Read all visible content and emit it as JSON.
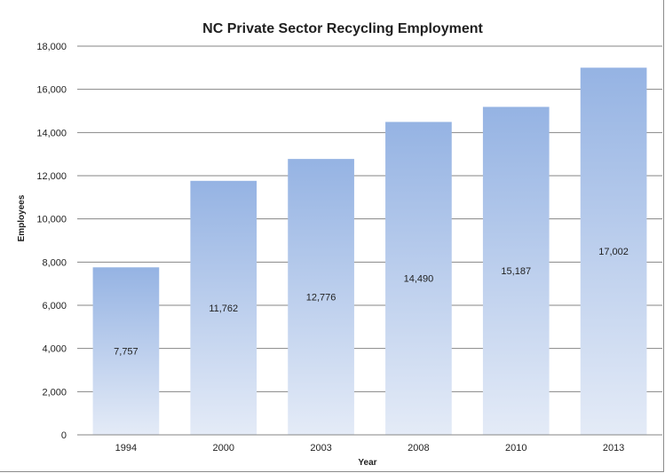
{
  "chart_data": {
    "type": "bar",
    "title": "NC Private Sector Recycling Employment",
    "xlabel": "Year",
    "ylabel": "Employees",
    "categories": [
      "1994",
      "2000",
      "2003",
      "2008",
      "2010",
      "2013"
    ],
    "values": [
      7757,
      11762,
      12776,
      14490,
      15187,
      17002
    ],
    "data_labels": [
      "7,757",
      "11,762",
      "12,776",
      "14,490",
      "15,187",
      "17,002"
    ],
    "ylim": [
      0,
      18000
    ],
    "yticks": [
      0,
      2000,
      4000,
      6000,
      8000,
      10000,
      12000,
      14000,
      16000,
      18000
    ],
    "ytick_labels": [
      "0",
      "2,000",
      "4,000",
      "6,000",
      "8,000",
      "10,000",
      "12,000",
      "14,000",
      "16,000",
      "18,000"
    ],
    "grid": true,
    "legend": "none",
    "colors": {
      "bar_top": "#95b3e3",
      "bar_bottom": "#e4ebf7",
      "grid": "#868686",
      "axis": "#868686"
    }
  }
}
